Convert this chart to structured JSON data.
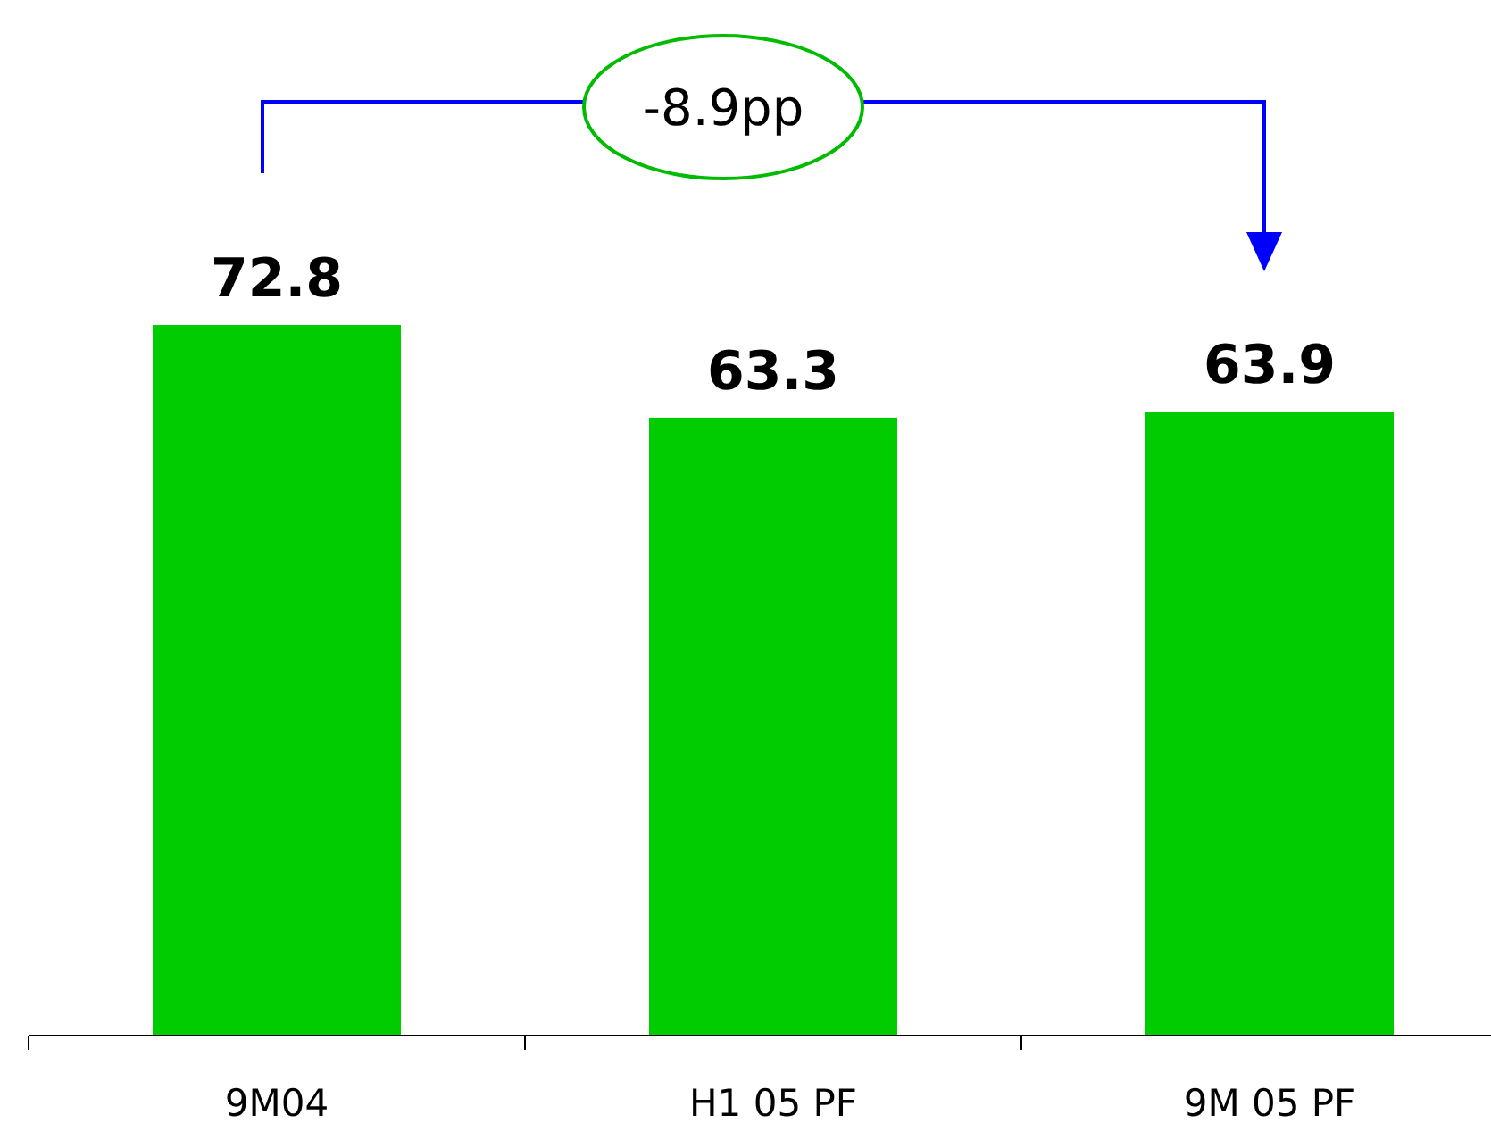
{
  "chart_data": {
    "type": "bar",
    "categories": [
      "9M04",
      "H1 05 PF",
      "9M 05 PF"
    ],
    "values": [
      72.8,
      63.3,
      63.9
    ],
    "color": "#00cc00",
    "data_labels": true,
    "tick_labels": "x",
    "annotations": [
      "-8.9pp"
    ]
  }
}
